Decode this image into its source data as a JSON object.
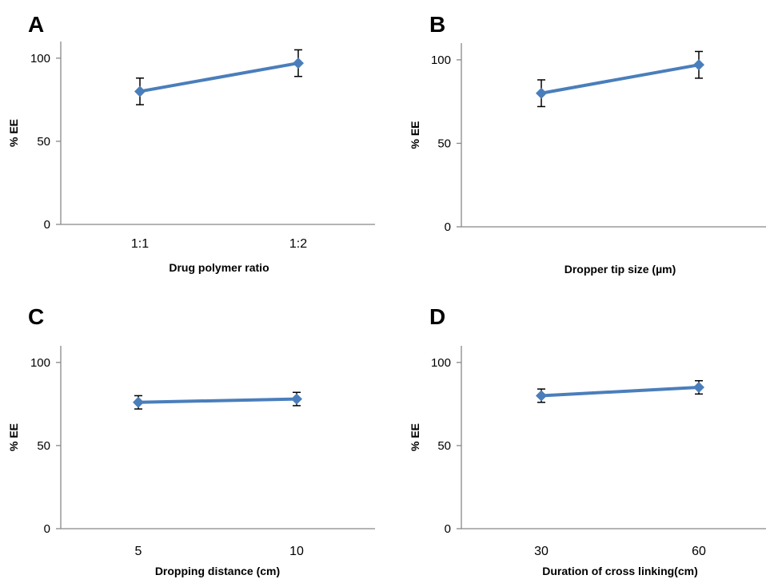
{
  "chart_data": [
    {
      "panel": "A",
      "type": "line",
      "categories": [
        "1:1",
        "1:2"
      ],
      "values": [
        80,
        97
      ],
      "errors": [
        8,
        8
      ],
      "xlabel": "Drug polymer ratio",
      "ylabel": "% EE",
      "yticks": [
        "0",
        "50",
        "100"
      ],
      "ylim": [
        0,
        110
      ],
      "grid": false,
      "color": "#4a7ebb"
    },
    {
      "panel": "B",
      "type": "line",
      "categories": [
        "",
        ""
      ],
      "values": [
        80,
        97
      ],
      "errors": [
        8,
        8
      ],
      "xlabel": "Dropper tip size (µm)",
      "ylabel": "% EE",
      "yticks": [
        "0",
        "50",
        "100"
      ],
      "ylim": [
        0,
        110
      ],
      "grid": false,
      "color": "#4a7ebb"
    },
    {
      "panel": "C",
      "type": "line",
      "categories": [
        "5",
        "10"
      ],
      "values": [
        76,
        78
      ],
      "errors": [
        4,
        4
      ],
      "xlabel": "Dropping distance (cm)",
      "ylabel": "% EE",
      "yticks": [
        "0",
        "50",
        "100"
      ],
      "ylim": [
        0,
        110
      ],
      "grid": false,
      "color": "#4a7ebb"
    },
    {
      "panel": "D",
      "type": "line",
      "categories": [
        "30",
        "60"
      ],
      "values": [
        80,
        85
      ],
      "errors": [
        4,
        4
      ],
      "xlabel": "Duration of cross linking(cm)",
      "ylabel": "% EE",
      "yticks": [
        "0",
        "50",
        "100"
      ],
      "ylim": [
        0,
        110
      ],
      "grid": false,
      "color": "#4a7ebb"
    }
  ]
}
